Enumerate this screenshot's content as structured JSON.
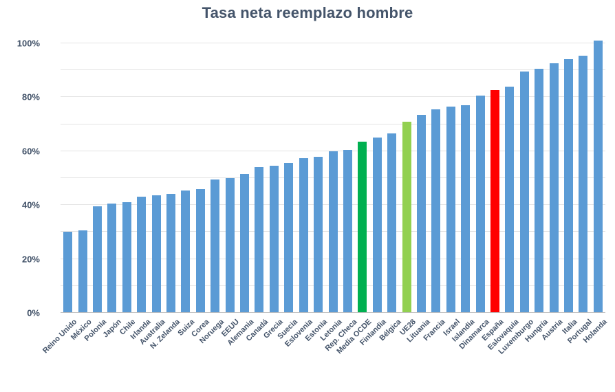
{
  "chart_data": {
    "type": "bar",
    "title": "Tasa neta reemplazo hombre",
    "categories": [
      "Reino Unido",
      "México",
      "Polonia",
      "Japón",
      "Chile",
      "Irlanda",
      "Australia",
      "N. Zelanda",
      "Suiza",
      "Corea",
      "Noruega",
      "EEUU",
      "Alemania",
      "Canadá",
      "Grecia",
      "Suecia",
      "Eslovenia",
      "Estonia",
      "Letonia",
      "Rep. Checa",
      "Media OCDE",
      "Finlandia",
      "Bélgica",
      "UE28",
      "Lituania",
      "Francia",
      "Israel",
      "Islandia",
      "Dinamarca",
      "España",
      "Eslovaquia",
      "Luxemburgo",
      "Hungría",
      "Austria",
      "Italia",
      "Portugal",
      "Holanda"
    ],
    "values": [
      30,
      30.5,
      39.5,
      40.5,
      41,
      43,
      43.5,
      44,
      45.5,
      46,
      49.5,
      50,
      51.5,
      54,
      54.5,
      55.5,
      57.5,
      58,
      60,
      60.5,
      63.5,
      65,
      66.5,
      71,
      73.5,
      75.5,
      76.5,
      77,
      80.5,
      82.5,
      84,
      89.5,
      90.5,
      92.5,
      94,
      95.5,
      101
    ],
    "unit": "%",
    "xlabel": "",
    "ylabel": "",
    "ylim": [
      0,
      102
    ],
    "yticks": [
      {
        "value": 0,
        "label": "0%"
      },
      {
        "value": 20,
        "label": "20%"
      },
      {
        "value": 40,
        "label": "40%"
      },
      {
        "value": 60,
        "label": "60%"
      },
      {
        "value": 80,
        "label": "80%"
      },
      {
        "value": 100,
        "label": "100%"
      }
    ],
    "gridline_step": 10,
    "grid": "horizontal",
    "legend": "none",
    "bar_color": "#5B9BD5",
    "highlight_colors": {
      "Media OCDE": "#00B050",
      "UE28": "#92D050",
      "España": "#FF0000"
    },
    "text_color": "#44546A",
    "gridline_color": "#E3E3E3",
    "axis_line_color": "#BFBFBF"
  }
}
